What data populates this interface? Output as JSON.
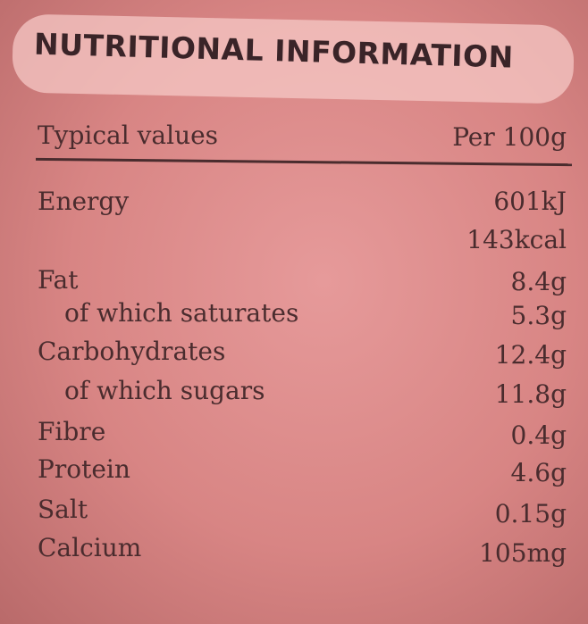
{
  "header": {
    "title": "NUTRITIONAL INFORMATION"
  },
  "table": {
    "columns": [
      "Typical values",
      "Per 100g"
    ],
    "rows": [
      {
        "label": "Energy",
        "values": [
          "601kJ",
          "143kcal"
        ]
      },
      {
        "label": "Fat",
        "values": [
          "8.4g"
        ]
      },
      {
        "label": "of which saturates",
        "values": [
          "5.3g"
        ]
      },
      {
        "label": "Carbohydrates",
        "values": [
          "12.4g"
        ]
      },
      {
        "label": "of which sugars",
        "values": [
          "11.8g"
        ]
      },
      {
        "label": "Fibre",
        "values": [
          "0.4g"
        ]
      },
      {
        "label": "Protein",
        "values": [
          "4.6g"
        ]
      },
      {
        "label": "Salt",
        "values": [
          "0.15g"
        ]
      },
      {
        "label": "Calcium",
        "values": [
          "105mg"
        ]
      }
    ]
  }
}
